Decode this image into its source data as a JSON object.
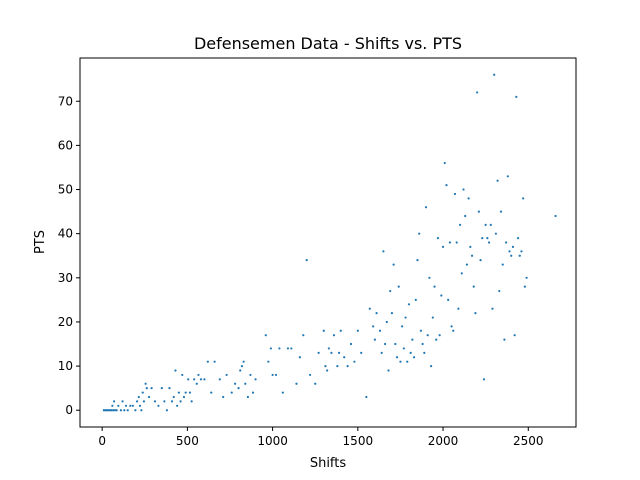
{
  "chart_data": {
    "type": "scatter",
    "title": "Defensemen Data - Shifts vs. PTS",
    "xlabel": "Shifts",
    "ylabel": "PTS",
    "xlim": [
      -130,
      2780
    ],
    "ylim": [
      -3.8,
      79.8
    ],
    "xticks": [
      0,
      500,
      1000,
      1500,
      2000,
      2500
    ],
    "yticks": [
      0,
      10,
      20,
      30,
      40,
      50,
      60,
      70
    ],
    "grid": false,
    "marker_color": "#1f77b4",
    "points": [
      [
        10,
        0
      ],
      [
        18,
        0
      ],
      [
        25,
        0
      ],
      [
        32,
        0
      ],
      [
        40,
        0
      ],
      [
        48,
        0
      ],
      [
        55,
        0
      ],
      [
        60,
        1
      ],
      [
        65,
        0
      ],
      [
        70,
        2
      ],
      [
        75,
        0
      ],
      [
        85,
        0
      ],
      [
        95,
        1
      ],
      [
        110,
        0
      ],
      [
        120,
        2
      ],
      [
        130,
        0
      ],
      [
        140,
        1
      ],
      [
        150,
        0
      ],
      [
        165,
        1
      ],
      [
        180,
        1
      ],
      [
        195,
        0
      ],
      [
        205,
        2
      ],
      [
        215,
        3
      ],
      [
        222,
        1
      ],
      [
        230,
        0
      ],
      [
        238,
        4
      ],
      [
        245,
        2
      ],
      [
        255,
        6
      ],
      [
        262,
        5
      ],
      [
        275,
        3
      ],
      [
        290,
        5
      ],
      [
        310,
        2
      ],
      [
        330,
        1
      ],
      [
        350,
        5
      ],
      [
        365,
        2
      ],
      [
        380,
        0
      ],
      [
        395,
        5
      ],
      [
        410,
        2
      ],
      [
        420,
        3
      ],
      [
        430,
        9
      ],
      [
        440,
        1
      ],
      [
        450,
        4
      ],
      [
        460,
        2
      ],
      [
        470,
        8
      ],
      [
        480,
        3
      ],
      [
        490,
        4
      ],
      [
        505,
        7
      ],
      [
        515,
        4
      ],
      [
        525,
        2
      ],
      [
        540,
        7
      ],
      [
        555,
        6
      ],
      [
        565,
        8
      ],
      [
        580,
        7
      ],
      [
        600,
        7
      ],
      [
        620,
        11
      ],
      [
        640,
        4
      ],
      [
        660,
        11
      ],
      [
        690,
        7
      ],
      [
        710,
        3
      ],
      [
        730,
        8
      ],
      [
        760,
        4
      ],
      [
        780,
        6
      ],
      [
        800,
        5
      ],
      [
        810,
        9
      ],
      [
        820,
        10
      ],
      [
        830,
        11
      ],
      [
        840,
        6
      ],
      [
        855,
        3
      ],
      [
        870,
        8
      ],
      [
        885,
        4
      ],
      [
        900,
        7
      ],
      [
        960,
        17
      ],
      [
        975,
        11
      ],
      [
        990,
        14
      ],
      [
        1000,
        8
      ],
      [
        1020,
        8
      ],
      [
        1040,
        14
      ],
      [
        1060,
        4
      ],
      [
        1090,
        14
      ],
      [
        1110,
        14
      ],
      [
        1140,
        6
      ],
      [
        1160,
        12
      ],
      [
        1180,
        17
      ],
      [
        1200,
        34
      ],
      [
        1220,
        8
      ],
      [
        1250,
        6
      ],
      [
        1270,
        13
      ],
      [
        1300,
        18
      ],
      [
        1310,
        10
      ],
      [
        1320,
        9
      ],
      [
        1330,
        14
      ],
      [
        1345,
        13
      ],
      [
        1360,
        17
      ],
      [
        1380,
        10
      ],
      [
        1390,
        13
      ],
      [
        1400,
        18
      ],
      [
        1420,
        12
      ],
      [
        1440,
        10
      ],
      [
        1460,
        15
      ],
      [
        1480,
        11
      ],
      [
        1500,
        18
      ],
      [
        1520,
        13
      ],
      [
        1550,
        3
      ],
      [
        1570,
        23
      ],
      [
        1590,
        19
      ],
      [
        1600,
        16
      ],
      [
        1610,
        22
      ],
      [
        1630,
        18
      ],
      [
        1640,
        13
      ],
      [
        1650,
        36
      ],
      [
        1660,
        15
      ],
      [
        1670,
        20
      ],
      [
        1680,
        9
      ],
      [
        1690,
        27
      ],
      [
        1700,
        22
      ],
      [
        1710,
        33
      ],
      [
        1720,
        15
      ],
      [
        1730,
        12
      ],
      [
        1740,
        28
      ],
      [
        1750,
        11
      ],
      [
        1760,
        19
      ],
      [
        1770,
        14
      ],
      [
        1780,
        21
      ],
      [
        1790,
        11
      ],
      [
        1800,
        24
      ],
      [
        1810,
        13
      ],
      [
        1820,
        16
      ],
      [
        1830,
        12
      ],
      [
        1840,
        25
      ],
      [
        1850,
        34
      ],
      [
        1860,
        40
      ],
      [
        1870,
        18
      ],
      [
        1880,
        15
      ],
      [
        1890,
        13
      ],
      [
        1900,
        46
      ],
      [
        1910,
        17
      ],
      [
        1920,
        30
      ],
      [
        1930,
        10
      ],
      [
        1940,
        21
      ],
      [
        1950,
        28
      ],
      [
        1960,
        16
      ],
      [
        1970,
        39
      ],
      [
        1980,
        17
      ],
      [
        1990,
        26
      ],
      [
        2000,
        37
      ],
      [
        2010,
        56
      ],
      [
        2020,
        51
      ],
      [
        2030,
        25
      ],
      [
        2040,
        38
      ],
      [
        2050,
        19
      ],
      [
        2060,
        18
      ],
      [
        2070,
        49
      ],
      [
        2080,
        38
      ],
      [
        2090,
        23
      ],
      [
        2100,
        42
      ],
      [
        2110,
        31
      ],
      [
        2120,
        50
      ],
      [
        2130,
        44
      ],
      [
        2140,
        33
      ],
      [
        2150,
        48
      ],
      [
        2160,
        37
      ],
      [
        2170,
        35
      ],
      [
        2180,
        28
      ],
      [
        2190,
        22
      ],
      [
        2200,
        72
      ],
      [
        2210,
        45
      ],
      [
        2220,
        34
      ],
      [
        2230,
        39
      ],
      [
        2240,
        7
      ],
      [
        2250,
        42
      ],
      [
        2260,
        39
      ],
      [
        2270,
        38
      ],
      [
        2280,
        42
      ],
      [
        2290,
        23
      ],
      [
        2300,
        76
      ],
      [
        2310,
        40
      ],
      [
        2320,
        52
      ],
      [
        2330,
        27
      ],
      [
        2340,
        45
      ],
      [
        2350,
        33
      ],
      [
        2360,
        16
      ],
      [
        2370,
        38
      ],
      [
        2380,
        53
      ],
      [
        2390,
        36
      ],
      [
        2400,
        35
      ],
      [
        2410,
        37
      ],
      [
        2420,
        17
      ],
      [
        2430,
        71
      ],
      [
        2440,
        39
      ],
      [
        2450,
        35
      ],
      [
        2460,
        36
      ],
      [
        2470,
        48
      ],
      [
        2480,
        28
      ],
      [
        2490,
        30
      ],
      [
        2660,
        44
      ]
    ]
  }
}
